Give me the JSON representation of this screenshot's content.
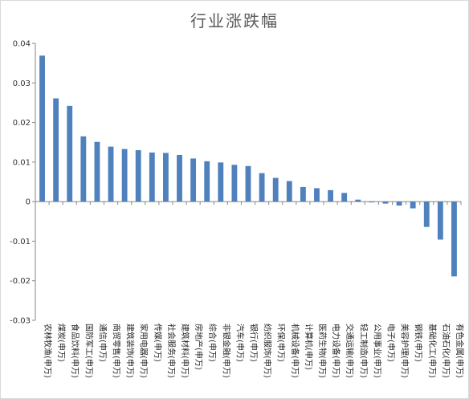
{
  "chart_data": {
    "type": "bar",
    "title": "行业涨跌幅",
    "categories": [
      "农林牧渔(申万)",
      "煤炭(申万)",
      "食品饮料(申万)",
      "国防军工(申万)",
      "通信(申万)",
      "商贸零售(申万)",
      "建筑装饰(申万)",
      "家用电器(申万)",
      "传媒(申万)",
      "社会服务(申万)",
      "建筑材料(申万)",
      "房地产(申万)",
      "综合(申万)",
      "非银金融(申万)",
      "汽车(申万)",
      "银行(申万)",
      "纺织服饰(申万)",
      "环保(申万)",
      "机械设备(申万)",
      "计算机(申万)",
      "医药生物(申万)",
      "电力设备(申万)",
      "交通运输(申万)",
      "轻工制造(申万)",
      "公用事业(申万)",
      "电子(申万)",
      "美容护理(申万)",
      "钢铁(申万)",
      "基础化工(申万)",
      "石油石化(申万)",
      "有色金属(申万)"
    ],
    "values": [
      0.0369,
      0.0261,
      0.0242,
      0.0165,
      0.0151,
      0.0139,
      0.0133,
      0.013,
      0.0124,
      0.0123,
      0.0118,
      0.0109,
      0.0102,
      0.0099,
      0.0093,
      0.009,
      0.0072,
      0.006,
      0.0052,
      0.0037,
      0.0034,
      0.0029,
      0.0022,
      0.0005,
      -0.0002,
      -0.0005,
      -0.001,
      -0.0017,
      -0.0064,
      -0.0096,
      -0.0189
    ],
    "ylim": [
      -0.03,
      0.04
    ],
    "yticks": [
      "-0.03",
      "-0.02",
      "-0.01",
      "0",
      "0.01",
      "0.02",
      "0.03",
      "0.04"
    ],
    "xlabel": "",
    "ylabel": "",
    "grid": false,
    "legend": "none",
    "bar_color": "#4f81bd"
  }
}
